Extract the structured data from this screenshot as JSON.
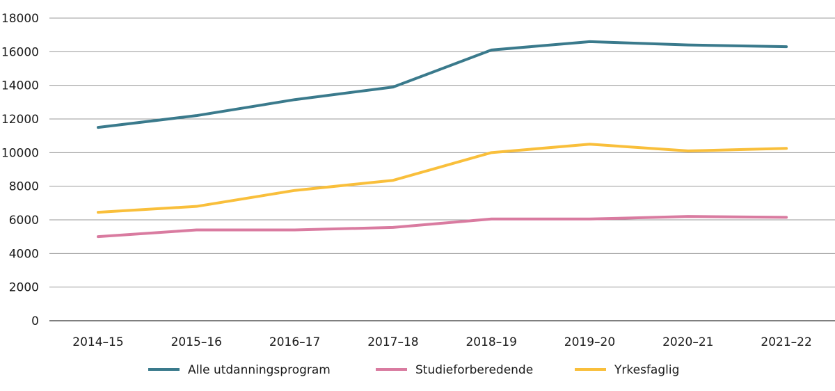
{
  "chart_data": {
    "type": "line",
    "title": "",
    "xlabel": "",
    "ylabel": "",
    "categories": [
      "2014–15",
      "2015–16",
      "2016–17",
      "2017–18",
      "2018–19",
      "2019–20",
      "2020–21",
      "2021–22"
    ],
    "ylim": [
      0,
      18000
    ],
    "yticks": [
      0,
      2000,
      4000,
      6000,
      8000,
      10000,
      12000,
      14000,
      16000,
      18000
    ],
    "grid": true,
    "legend_position": "bottom",
    "series": [
      {
        "name": "Alle utdanningsprogram",
        "color": "#3a7a8c",
        "values": [
          11500,
          12200,
          13150,
          13900,
          16100,
          16600,
          16400,
          16300
        ]
      },
      {
        "name": "Studieforberedende",
        "color": "#d97ba0",
        "values": [
          5000,
          5400,
          5400,
          5550,
          6050,
          6050,
          6200,
          6150
        ]
      },
      {
        "name": "Yrkesfaglig",
        "color": "#f9bf3b",
        "values": [
          6450,
          6800,
          7750,
          8350,
          10000,
          10500,
          10100,
          10250
        ]
      }
    ]
  }
}
